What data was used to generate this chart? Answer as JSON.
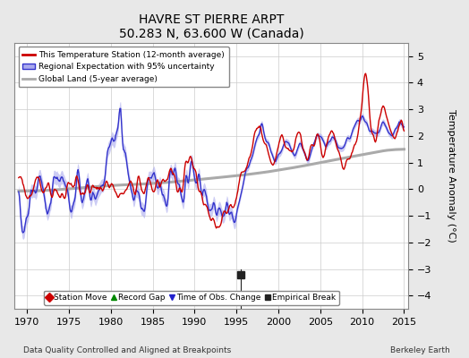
{
  "title": "HAVRE ST PIERRE ARPT",
  "subtitle": "50.283 N, 63.600 W (Canada)",
  "ylabel": "Temperature Anomaly (°C)",
  "footer_left": "Data Quality Controlled and Aligned at Breakpoints",
  "footer_right": "Berkeley Earth",
  "xlim": [
    1968.5,
    2015.5
  ],
  "ylim": [
    -4.5,
    5.5
  ],
  "yticks": [
    -4,
    -3,
    -2,
    -1,
    0,
    1,
    2,
    3,
    4,
    5
  ],
  "xticks": [
    1970,
    1975,
    1980,
    1985,
    1990,
    1995,
    2000,
    2005,
    2010,
    2015
  ],
  "bg_color": "#e8e8e8",
  "plot_bg_color": "#ffffff",
  "grid_color": "#cccccc",
  "station_color": "#cc0000",
  "regional_color": "#3333cc",
  "regional_fill_color": "#aaaaee",
  "global_color": "#aaaaaa",
  "empirical_break_x": 1995.5,
  "legend_labels": [
    "This Temperature Station (12-month average)",
    "Regional Expectation with 95% uncertainty",
    "Global Land (5-year average)"
  ],
  "bottom_legend": [
    "Station Move",
    "Record Gap",
    "Time of Obs. Change",
    "Empirical Break"
  ],
  "bottom_legend_colors": [
    "#cc0000",
    "#008800",
    "#2222cc",
    "#222222"
  ],
  "bottom_legend_markers": [
    "D",
    "^",
    "v",
    "s"
  ]
}
